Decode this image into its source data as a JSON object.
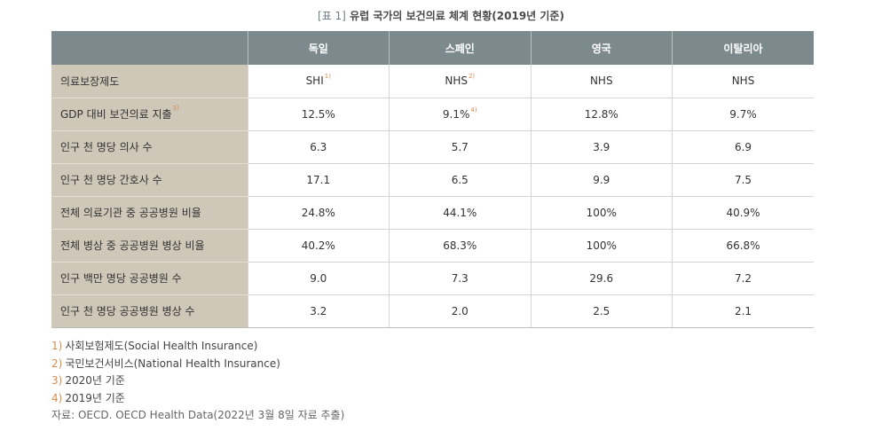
{
  "caption": {
    "tag": "[표 1]",
    "title": "유럽 국가의 보건의료 체계 현황(2019년 기준)"
  },
  "columns": [
    "독일",
    "스페인",
    "영국",
    "이탈리아"
  ],
  "rows": [
    {
      "label": "의료보장제도",
      "label_ref": "",
      "cells": [
        {
          "value": "SHI",
          "ref": "1)"
        },
        {
          "value": "NHS",
          "ref": "2)"
        },
        {
          "value": "NHS",
          "ref": ""
        },
        {
          "value": "NHS",
          "ref": ""
        }
      ]
    },
    {
      "label": "GDP 대비 보건의료 지출",
      "label_ref": "3)",
      "cells": [
        {
          "value": "12.5%",
          "ref": ""
        },
        {
          "value": "9.1%",
          "ref": "4)"
        },
        {
          "value": "12.8%",
          "ref": ""
        },
        {
          "value": "9.7%",
          "ref": ""
        }
      ]
    },
    {
      "label": "인구 천 명당 의사 수",
      "label_ref": "",
      "cells": [
        {
          "value": "6.3",
          "ref": ""
        },
        {
          "value": "5.7",
          "ref": ""
        },
        {
          "value": "3.9",
          "ref": ""
        },
        {
          "value": "6.9",
          "ref": ""
        }
      ]
    },
    {
      "label": "인구 천 명당 간호사 수",
      "label_ref": "",
      "cells": [
        {
          "value": "17.1",
          "ref": ""
        },
        {
          "value": "6.5",
          "ref": ""
        },
        {
          "value": "9.9",
          "ref": ""
        },
        {
          "value": "7.5",
          "ref": ""
        }
      ]
    },
    {
      "label": "전체 의료기관 중 공공병원 비율",
      "label_ref": "",
      "cells": [
        {
          "value": "24.8%",
          "ref": ""
        },
        {
          "value": "44.1%",
          "ref": ""
        },
        {
          "value": "100%",
          "ref": ""
        },
        {
          "value": "40.9%",
          "ref": ""
        }
      ]
    },
    {
      "label": "전체 병상 중 공공병원 병상 비율",
      "label_ref": "",
      "cells": [
        {
          "value": "40.2%",
          "ref": ""
        },
        {
          "value": "68.3%",
          "ref": ""
        },
        {
          "value": "100%",
          "ref": ""
        },
        {
          "value": "66.8%",
          "ref": ""
        }
      ]
    },
    {
      "label": "인구 백만 명당 공공병원 수",
      "label_ref": "",
      "cells": [
        {
          "value": "9.0",
          "ref": ""
        },
        {
          "value": "7.3",
          "ref": ""
        },
        {
          "value": "29.6",
          "ref": ""
        },
        {
          "value": "7.2",
          "ref": ""
        }
      ]
    },
    {
      "label": "인구 천 명당 공공병원 병상 수",
      "label_ref": "",
      "cells": [
        {
          "value": "3.2",
          "ref": ""
        },
        {
          "value": "2.0",
          "ref": ""
        },
        {
          "value": "2.5",
          "ref": ""
        },
        {
          "value": "2.1",
          "ref": ""
        }
      ]
    }
  ],
  "notes": [
    {
      "num": "1)",
      "text": "사회보험제도(Social Health Insurance)"
    },
    {
      "num": "2)",
      "text": "국민보건서비스(National Health Insurance)"
    },
    {
      "num": "3)",
      "text": "2020년 기준"
    },
    {
      "num": "4)",
      "text": "2019년 기준"
    }
  ],
  "source": "자료: OECD. OECD Health Data(2022년 3월 8일 자료 추출)",
  "colors": {
    "header_bg": "#7c8a8e",
    "row_label_bg": "#cfc7b8",
    "note_accent": "#d98a4f"
  }
}
